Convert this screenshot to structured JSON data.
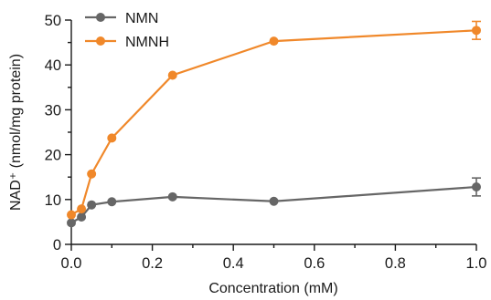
{
  "chart_data": {
    "type": "line",
    "xlabel": "Concentration (mM)",
    "ylabel": "NAD⁺ (nmol/mg protein)",
    "xlim": [
      0,
      1.0
    ],
    "ylim": [
      0,
      50
    ],
    "x_ticks": [
      "0.0",
      "0.2",
      "0.4",
      "0.6",
      "0.8",
      "1.0"
    ],
    "y_ticks": [
      "0",
      "10",
      "20",
      "30",
      "40",
      "50"
    ],
    "legend_position": "top-left",
    "series": [
      {
        "name": "NMN",
        "color": "#666666",
        "x": [
          0,
          0.025,
          0.05,
          0.1,
          0.25,
          0.5,
          1.0
        ],
        "y": [
          4.8,
          6.1,
          8.8,
          9.5,
          10.6,
          9.6,
          12.8
        ],
        "error": [
          0,
          0,
          0,
          0,
          0,
          0,
          2.0
        ]
      },
      {
        "name": "NMNH",
        "color": "#f0882a",
        "x": [
          0,
          0.025,
          0.05,
          0.1,
          0.25,
          0.5,
          1.0
        ],
        "y": [
          6.6,
          7.9,
          15.7,
          23.7,
          37.7,
          45.3,
          47.7
        ],
        "error": [
          0,
          0,
          0,
          0,
          0,
          0,
          2.0
        ]
      }
    ]
  }
}
